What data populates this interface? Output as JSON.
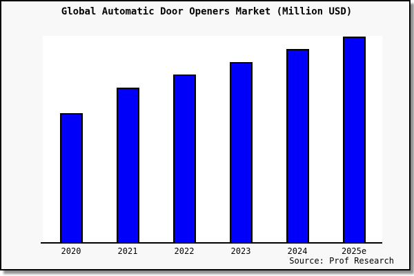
{
  "window": {
    "background_color": "#f8f8f8",
    "border_color": "#000000",
    "drop_shadow": true
  },
  "header": {
    "title": "Global Automatic Door Openers Market (Million USD)"
  },
  "footer": {
    "source_label": "Source: Prof Research"
  },
  "chart_data": {
    "type": "bar",
    "title": "Global Automatic Door Openers Market (Million USD)",
    "categories": [
      "2020",
      "2021",
      "2022",
      "2023",
      "2024",
      "2025e"
    ],
    "values": [
      189,
      226,
      245,
      263,
      282,
      300
    ],
    "value_note": "no y-axis or data labels shown; values are relative bar heights in screen pixels read from the chart",
    "xlabel": "",
    "ylabel": "",
    "ylim": [
      0,
      301
    ],
    "grid": false,
    "legend": false,
    "plot_background": "#ffffff",
    "bar_color": "#0000fa",
    "bar_border_color": "#000000",
    "axis_color": "#000000",
    "source": "Source: Prof Research"
  }
}
